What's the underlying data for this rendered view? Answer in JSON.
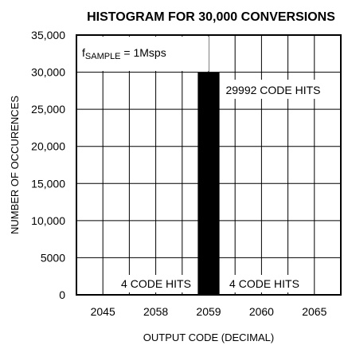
{
  "chart_data": {
    "type": "bar",
    "title": "HISTOGRAM FOR 30,000 CONVERSIONS",
    "xlabel": "OUTPUT CODE (DECIMAL)",
    "ylabel": "NUMBER OF OCCURENCES",
    "ylim": [
      0,
      35000
    ],
    "grid": true,
    "yticks": [
      "0",
      "5000",
      "10,000",
      "15,000",
      "20,000",
      "25,000",
      "30,000",
      "35,000"
    ],
    "ytick_values": [
      0,
      5000,
      10000,
      15000,
      20000,
      25000,
      30000,
      35000
    ],
    "xticks": [
      "2045",
      "2058",
      "2059",
      "2060",
      "2065"
    ],
    "bars": [
      {
        "category": "2058",
        "value": 4
      },
      {
        "category": "2059",
        "value": 29992
      },
      {
        "category": "2060",
        "value": 4
      }
    ],
    "bar_color": "#000000",
    "annotations": {
      "sample_rate_main": "f",
      "sample_rate_sub": "SAMPLE",
      "sample_rate_rest": " = 1Msps",
      "center_hits": "29992 CODE HITS",
      "left_hits": "4 CODE HITS",
      "right_hits": "4 CODE HITS"
    }
  }
}
